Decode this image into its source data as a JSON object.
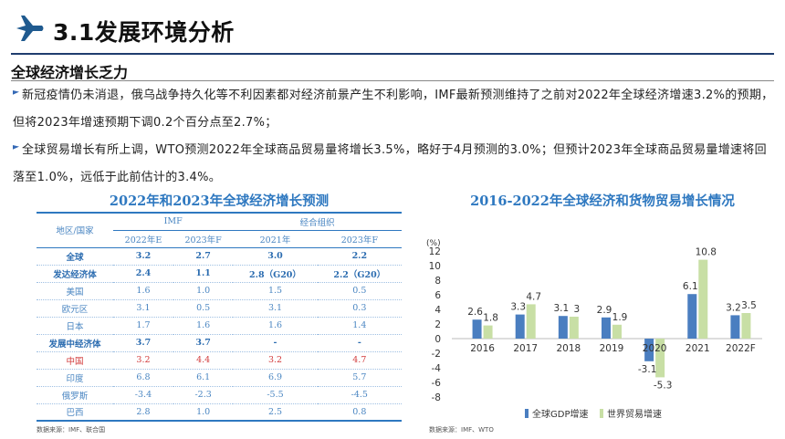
{
  "header": {
    "title": "3.1发展环境分析"
  },
  "section": {
    "title": "全球经济增长乏力"
  },
  "paragraphs": [
    "新冠疫情仍未消退，俄乌战争持久化等不利因素都对经济前景产生不利影响，IMF最新预测维持了之前对2022年全球经济增速3.2%的预期，但将2023年增速预期下调0.2个百分点至2.7%；",
    "全球贸易增长有所上调，WTO预测2022年全球商品贸易量将增长3.5%，略好于4月预测的3.0%；但预计2023年全球商品贸易量增速将回落至1.0%，远低于此前估计的3.4%。"
  ],
  "table": {
    "title": "2022年和2023年全球经济增长预测",
    "col_region": "地区/国家",
    "group1": "IMF",
    "group2": "经合组织",
    "sub_headers": [
      "2022年E",
      "2023年F",
      "2021年",
      "2023年F"
    ],
    "rows": [
      {
        "region": "全球",
        "values": [
          "3.2",
          "2.7",
          "3.0",
          "2.2"
        ]
      },
      {
        "region": "发达经济体",
        "values": [
          "2.4",
          "1.1",
          "2.8（G20）",
          "2.2（G20）"
        ]
      },
      {
        "region": "美国",
        "values": [
          "1.6",
          "1.0",
          "1.5",
          "0.5"
        ]
      },
      {
        "region": "欧元区",
        "values": [
          "3.1",
          "0.5",
          "3.1",
          "0.3"
        ]
      },
      {
        "region": "日本",
        "values": [
          "1.7",
          "1.6",
          "1.6",
          "1.4"
        ]
      },
      {
        "region": "发展中经济体",
        "values": [
          "3.7",
          "3.7",
          "-",
          "-"
        ]
      },
      {
        "region": "中国",
        "values": [
          "3.2",
          "4.4",
          "3.2",
          "4.7"
        ]
      },
      {
        "region": "印度",
        "values": [
          "6.8",
          "6.1",
          "6.9",
          "5.7"
        ]
      },
      {
        "region": "俄罗斯",
        "values": [
          "-3.4",
          "-2.3",
          "-5.5",
          "-4.5"
        ]
      },
      {
        "region": "巴西",
        "values": [
          "2.8",
          "1.0",
          "2.5",
          "0.8"
        ]
      }
    ],
    "source": "数据来源：IMF、联合国"
  },
  "chart_data": {
    "type": "bar",
    "title": "2016-2022年全球经济和货物贸易增长情况",
    "ylabel": "(%)",
    "categories": [
      "2016",
      "2017",
      "2018",
      "2019",
      "2020",
      "2021",
      "2022F"
    ],
    "series": [
      {
        "name": "全球GDP增速",
        "values": [
          2.6,
          3.3,
          3.1,
          2.9,
          -3.1,
          6.1,
          3.2
        ],
        "color": "#4a7ec0"
      },
      {
        "name": "世界贸易增速",
        "values": [
          1.8,
          4.7,
          3,
          1.9,
          -5.3,
          10.8,
          3.5
        ],
        "color": "#c8dfa5"
      }
    ],
    "yticks": [
      -8,
      -6,
      -4,
      -2,
      0,
      2,
      4,
      6,
      8,
      10,
      12
    ],
    "ylim": [
      -8,
      12
    ],
    "legend_position": "bottom",
    "source": "数据来源：IMF、WTO"
  },
  "colors": {
    "accent": "#2e78c0",
    "header_line": "#1f3d6e",
    "china": "#d23a3a"
  }
}
